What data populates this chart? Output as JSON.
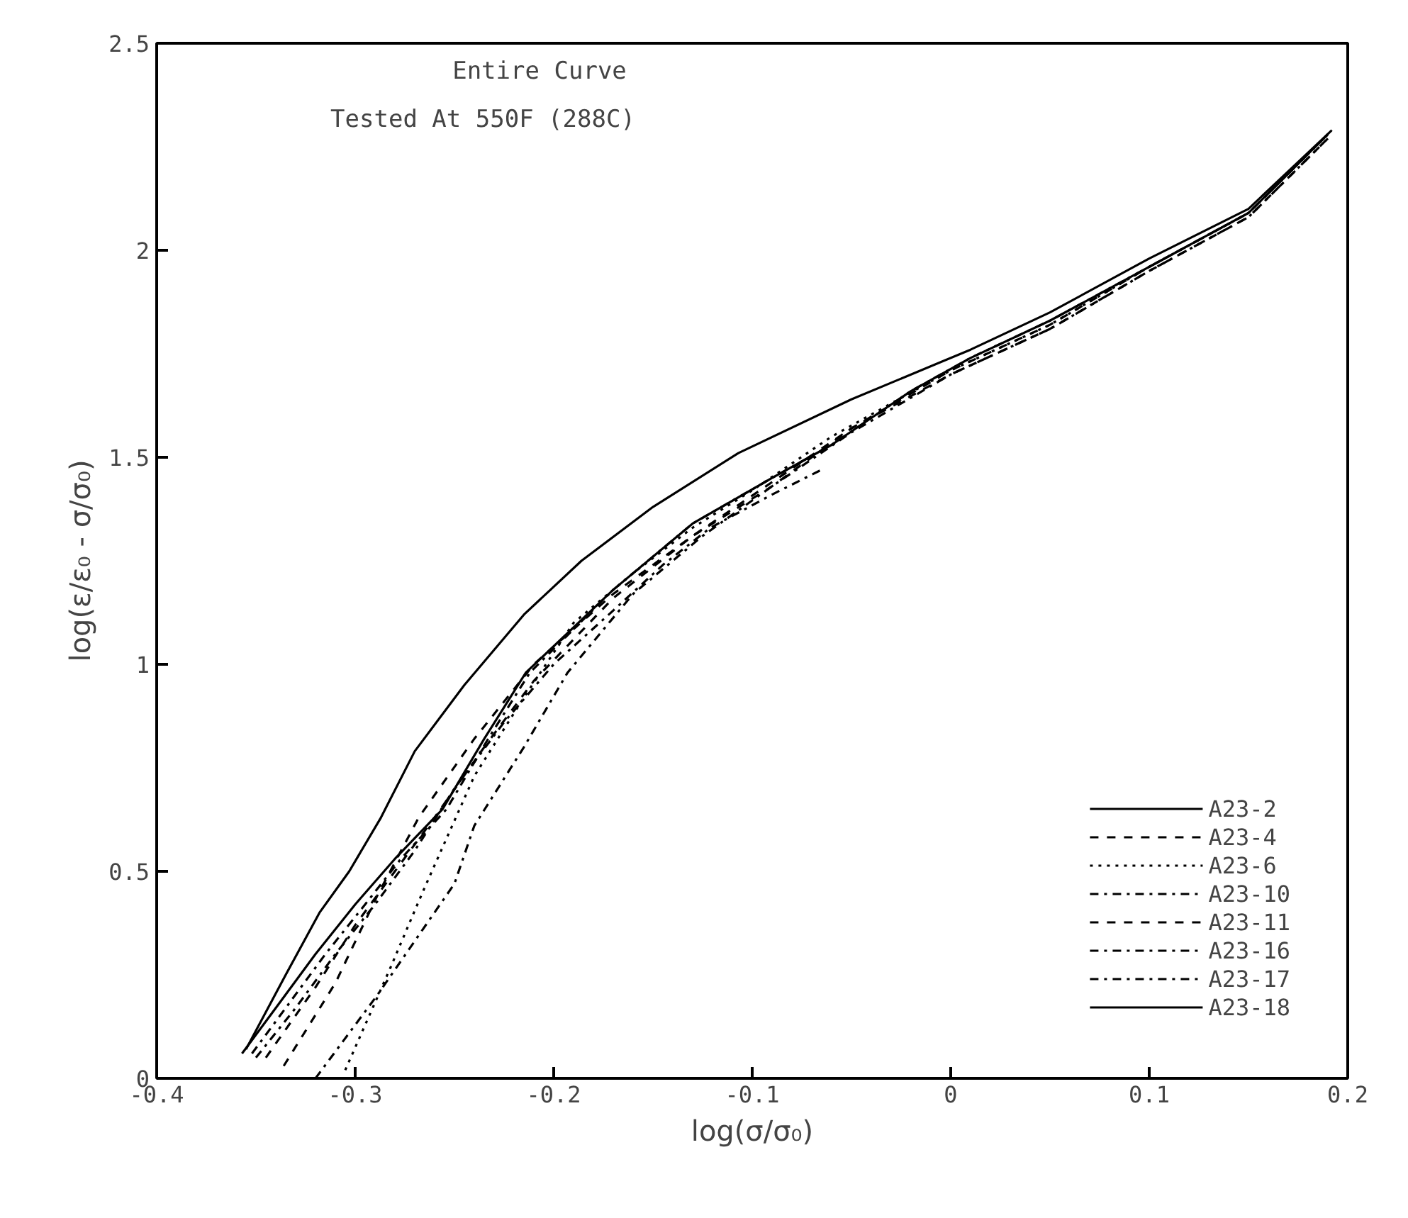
{
  "chart_data": {
    "type": "line",
    "xlabel": "log(σ/σ₀)",
    "ylabel": "log(ε/ε₀ - σ/σ₀)",
    "annotations": [
      "Entire Curve",
      "Tested At 550F (288C)"
    ],
    "xlim": [
      -0.4,
      0.2
    ],
    "ylim": [
      0,
      2.5
    ],
    "xticks": [
      -0.4,
      -0.3,
      -0.2,
      -0.1,
      0,
      0.1,
      0.2
    ],
    "yticks": [
      0,
      0.5,
      1,
      1.5,
      2,
      2.5
    ],
    "grid": false,
    "legend": "bottom right",
    "marker": "none",
    "series": [
      {
        "name": "A23-2",
        "color": "#000000",
        "line_style": "solid",
        "x": [
          -0.355,
          -0.335,
          -0.318,
          -0.303,
          -0.287,
          -0.27,
          -0.245,
          -0.215,
          -0.186,
          -0.15,
          -0.107,
          -0.05,
          0.01,
          0.05,
          0.1,
          0.15,
          0.192
        ],
        "values": [
          0.07,
          0.25,
          0.4,
          0.5,
          0.63,
          0.79,
          0.95,
          1.12,
          1.25,
          1.38,
          1.51,
          1.64,
          1.76,
          1.85,
          1.98,
          2.1,
          2.29
        ]
      },
      {
        "name": "A23-4",
        "color": "#000000",
        "line_style": "dashed",
        "x": [
          -0.336,
          -0.31,
          -0.289,
          -0.268,
          -0.24,
          -0.21,
          -0.17,
          -0.13,
          -0.09,
          -0.05,
          0,
          0.05,
          0.1,
          0.15,
          0.19
        ],
        "values": [
          0.03,
          0.23,
          0.44,
          0.63,
          0.82,
          1.0,
          1.17,
          1.31,
          1.43,
          1.57,
          1.7,
          1.81,
          1.95,
          2.08,
          2.27
        ]
      },
      {
        "name": "A23-6",
        "color": "#000000",
        "line_style": "dotted",
        "x": [
          -0.305,
          -0.282,
          -0.266,
          -0.24,
          -0.215,
          -0.19,
          -0.16,
          -0.13,
          -0.1,
          -0.06,
          0,
          0.05,
          0.1,
          0.15,
          0.19
        ],
        "values": [
          0.02,
          0.27,
          0.45,
          0.73,
          0.92,
          1.1,
          1.22,
          1.33,
          1.42,
          1.55,
          1.71,
          1.82,
          1.96,
          2.09,
          2.28
        ]
      },
      {
        "name": "A23-10",
        "color": "#000000",
        "line_style": "dashdot",
        "x": [
          -0.32,
          -0.289,
          -0.25,
          -0.24,
          -0.215,
          -0.193,
          -0.16,
          -0.125,
          -0.09,
          -0.05,
          0,
          0.05,
          0.1,
          0.15,
          0.19
        ],
        "values": [
          0.0,
          0.2,
          0.47,
          0.61,
          0.8,
          0.98,
          1.17,
          1.31,
          1.43,
          1.56,
          1.7,
          1.81,
          1.95,
          2.08,
          2.27
        ]
      },
      {
        "name": "A23-11",
        "color": "#000000",
        "line_style": "dashed",
        "x": [
          -0.345,
          -0.32,
          -0.3,
          -0.28,
          -0.26,
          -0.235,
          -0.21,
          -0.17,
          -0.13,
          -0.09,
          -0.05,
          0,
          0.05,
          0.1,
          0.15,
          0.19
        ],
        "values": [
          0.05,
          0.22,
          0.37,
          0.5,
          0.63,
          0.8,
          0.96,
          1.16,
          1.31,
          1.44,
          1.57,
          1.71,
          1.82,
          1.96,
          2.09,
          2.28
        ]
      },
      {
        "name": "A23-16",
        "color": "#000000",
        "line_style": "dashdot",
        "x": [
          -0.35,
          -0.33,
          -0.31,
          -0.29,
          -0.27,
          -0.25,
          -0.225,
          -0.2,
          -0.17,
          -0.145,
          -0.121,
          -0.09,
          -0.065
        ],
        "values": [
          0.05,
          0.17,
          0.3,
          0.42,
          0.55,
          0.7,
          0.86,
          1.0,
          1.13,
          1.24,
          1.33,
          1.41,
          1.47
        ]
      },
      {
        "name": "A23-17",
        "color": "#000000",
        "line_style": "dashdot",
        "x": [
          -0.352,
          -0.335,
          -0.315,
          -0.295,
          -0.277,
          -0.254,
          -0.233,
          -0.212,
          -0.17,
          -0.13,
          -0.09,
          -0.06,
          -0.02,
          0.01,
          0.05,
          0.1,
          0.15,
          0.19
        ],
        "values": [
          0.06,
          0.17,
          0.3,
          0.42,
          0.53,
          0.65,
          0.82,
          0.98,
          1.18,
          1.34,
          1.45,
          1.53,
          1.66,
          1.74,
          1.83,
          1.96,
          2.09,
          2.28
        ]
      },
      {
        "name": "A23-18",
        "color": "#000000",
        "line_style": "solid",
        "x": [
          -0.357,
          -0.34,
          -0.32,
          -0.3,
          -0.28,
          -0.256,
          -0.235,
          -0.214,
          -0.17,
          -0.13,
          -0.09,
          -0.06,
          -0.02,
          0.01,
          0.05,
          0.1,
          0.15,
          0.19
        ],
        "values": [
          0.06,
          0.17,
          0.3,
          0.42,
          0.53,
          0.65,
          0.82,
          0.98,
          1.18,
          1.34,
          1.45,
          1.53,
          1.66,
          1.74,
          1.83,
          1.96,
          2.09,
          2.28
        ]
      }
    ]
  }
}
